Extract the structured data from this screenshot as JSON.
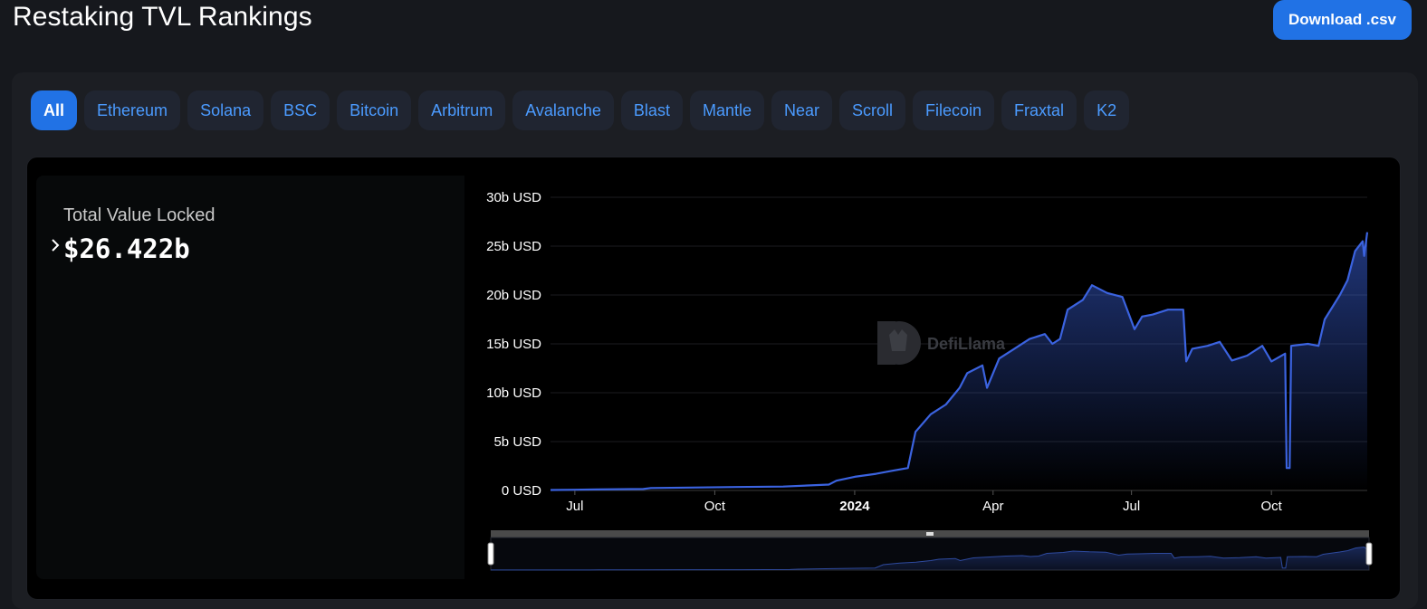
{
  "header": {
    "title": "Restaking TVL Rankings",
    "download_label": "Download .csv"
  },
  "tabs": [
    {
      "label": "All",
      "active": true
    },
    {
      "label": "Ethereum"
    },
    {
      "label": "Solana"
    },
    {
      "label": "BSC"
    },
    {
      "label": "Bitcoin"
    },
    {
      "label": "Arbitrum"
    },
    {
      "label": "Avalanche"
    },
    {
      "label": "Blast"
    },
    {
      "label": "Mantle"
    },
    {
      "label": "Near"
    },
    {
      "label": "Scroll"
    },
    {
      "label": "Filecoin"
    },
    {
      "label": "Fraxtal"
    },
    {
      "label": "K2"
    }
  ],
  "summary": {
    "label": "Total Value Locked",
    "value": "$26.422b"
  },
  "watermark": "DefiLlama",
  "colors": {
    "accent": "#2172e5",
    "line": "#3b63e0",
    "tab_text": "#4b9bff"
  },
  "chart_data": {
    "type": "area",
    "y_unit": "USD",
    "ylim": [
      0,
      30
    ],
    "y_ticks": [
      "0 USD",
      "5b USD",
      "10b USD",
      "15b USD",
      "20b USD",
      "25b USD",
      "30b USD"
    ],
    "x_ticks": [
      {
        "label": "Jul",
        "date": "2023-07-01"
      },
      {
        "label": "Oct",
        "date": "2023-10-01"
      },
      {
        "label": "2024",
        "date": "2024-01-01",
        "bold": true
      },
      {
        "label": "Apr",
        "date": "2024-04-01"
      },
      {
        "label": "Jul",
        "date": "2024-07-01"
      },
      {
        "label": "Oct",
        "date": "2024-10-01"
      }
    ],
    "x_range": [
      "2023-06-15",
      "2024-12-03"
    ],
    "grid": true,
    "series": [
      {
        "points": [
          [
            "2023-06-15",
            0.05
          ],
          [
            "2023-07-15",
            0.1
          ],
          [
            "2023-08-15",
            0.15
          ],
          [
            "2023-08-20",
            0.25
          ],
          [
            "2023-09-15",
            0.3
          ],
          [
            "2023-10-15",
            0.35
          ],
          [
            "2023-11-15",
            0.4
          ],
          [
            "2023-12-15",
            0.6
          ],
          [
            "2023-12-20",
            1.0
          ],
          [
            "2024-01-01",
            1.4
          ],
          [
            "2024-01-15",
            1.7
          ],
          [
            "2024-01-25",
            2.0
          ],
          [
            "2024-02-05",
            2.3
          ],
          [
            "2024-02-10",
            6.0
          ],
          [
            "2024-02-20",
            7.8
          ],
          [
            "2024-03-01",
            8.8
          ],
          [
            "2024-03-10",
            10.5
          ],
          [
            "2024-03-15",
            12.0
          ],
          [
            "2024-03-25",
            12.8
          ],
          [
            "2024-03-28",
            10.5
          ],
          [
            "2024-04-05",
            13.5
          ],
          [
            "2024-04-15",
            14.5
          ],
          [
            "2024-04-25",
            15.5
          ],
          [
            "2024-05-05",
            16.0
          ],
          [
            "2024-05-10",
            15.0
          ],
          [
            "2024-05-15",
            15.5
          ],
          [
            "2024-05-20",
            18.5
          ],
          [
            "2024-05-30",
            19.5
          ],
          [
            "2024-06-05",
            21.0
          ],
          [
            "2024-06-15",
            20.2
          ],
          [
            "2024-06-25",
            19.8
          ],
          [
            "2024-07-03",
            16.5
          ],
          [
            "2024-07-08",
            17.8
          ],
          [
            "2024-07-15",
            18.0
          ],
          [
            "2024-07-25",
            18.5
          ],
          [
            "2024-08-04",
            18.5
          ],
          [
            "2024-08-06",
            13.2
          ],
          [
            "2024-08-10",
            14.5
          ],
          [
            "2024-08-20",
            14.8
          ],
          [
            "2024-08-28",
            15.2
          ],
          [
            "2024-09-05",
            13.3
          ],
          [
            "2024-09-15",
            13.8
          ],
          [
            "2024-09-25",
            14.8
          ],
          [
            "2024-10-01",
            13.2
          ],
          [
            "2024-10-10",
            14.0
          ],
          [
            "2024-10-11",
            2.3
          ],
          [
            "2024-10-13",
            2.3
          ],
          [
            "2024-10-14",
            14.8
          ],
          [
            "2024-10-25",
            15.0
          ],
          [
            "2024-11-01",
            14.8
          ],
          [
            "2024-11-05",
            17.5
          ],
          [
            "2024-11-15",
            20.0
          ],
          [
            "2024-11-20",
            21.5
          ],
          [
            "2024-11-25",
            24.5
          ],
          [
            "2024-11-30",
            25.5
          ],
          [
            "2024-12-01",
            24.0
          ],
          [
            "2024-12-03",
            26.422
          ]
        ]
      }
    ]
  }
}
